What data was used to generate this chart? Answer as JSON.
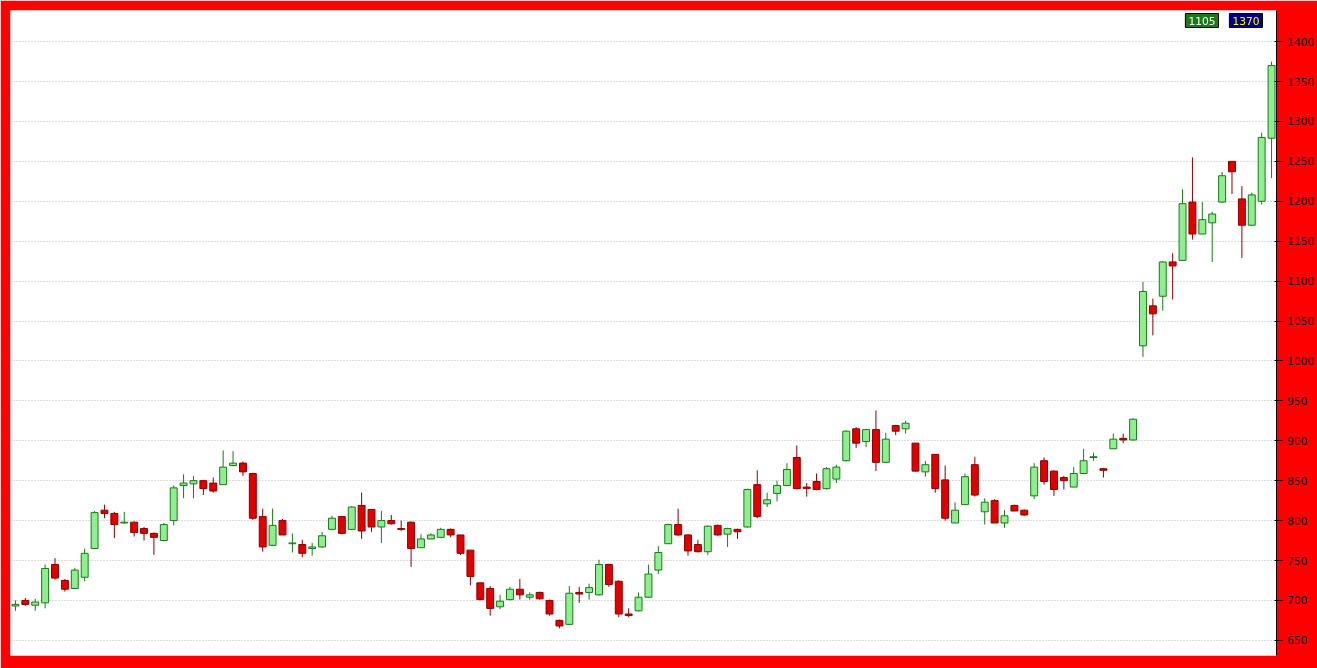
{
  "chart_data": {
    "type": "candlestick",
    "categories": [
      null,
      null,
      null,
      null,
      null,
      null,
      null,
      null,
      null,
      null,
      null,
      null,
      null,
      null,
      null,
      null,
      null,
      null,
      null,
      null,
      null,
      null,
      null,
      null,
      null,
      null,
      null,
      null,
      null,
      null,
      null,
      null,
      null,
      null,
      null,
      null,
      null,
      null,
      null,
      null,
      null,
      null,
      null,
      null,
      null,
      null,
      null,
      null,
      null,
      null,
      null,
      null,
      null,
      null,
      null,
      null,
      null,
      null,
      null,
      null,
      null,
      null,
      null,
      null,
      null,
      null,
      null,
      null,
      null,
      null,
      null,
      null,
      null,
      null,
      null,
      null,
      null,
      null,
      null,
      null,
      null,
      null,
      null,
      null,
      null,
      null,
      null,
      null,
      null,
      null,
      null,
      null,
      null,
      null,
      null,
      null,
      null,
      null,
      null,
      null,
      null,
      null,
      null,
      null,
      null,
      null,
      null,
      null,
      null,
      null,
      null,
      null,
      null,
      null,
      null,
      null,
      null,
      null,
      null,
      null,
      null,
      null,
      null,
      null,
      null,
      null,
      null,
      null
    ],
    "ohlc": [
      [
        693,
        700,
        687,
        695
      ],
      [
        700,
        703,
        693,
        695
      ],
      [
        694,
        702,
        687,
        698
      ],
      [
        697,
        745,
        690,
        740
      ],
      [
        745,
        753,
        726,
        728
      ],
      [
        725,
        727,
        711,
        714
      ],
      [
        715,
        741,
        715,
        738
      ],
      [
        729,
        765,
        724,
        759
      ],
      [
        765,
        812,
        765,
        810
      ],
      [
        813,
        820,
        803,
        809
      ],
      [
        809,
        811,
        778,
        795
      ],
      [
        797,
        811,
        796,
        798
      ],
      [
        798,
        799,
        780,
        785
      ],
      [
        790,
        792,
        775,
        784
      ],
      [
        784,
        785,
        757,
        779
      ],
      [
        775,
        797,
        774,
        795
      ],
      [
        800,
        844,
        794,
        841
      ],
      [
        844,
        858,
        828,
        847
      ],
      [
        846,
        856,
        828,
        850
      ],
      [
        850,
        851,
        832,
        840
      ],
      [
        847,
        854,
        835,
        837
      ],
      [
        845,
        888,
        845,
        867
      ],
      [
        869,
        887,
        868,
        872
      ],
      [
        872,
        874,
        856,
        861
      ],
      [
        859,
        860,
        801,
        803
      ],
      [
        805,
        815,
        761,
        767
      ],
      [
        769,
        815,
        768,
        794
      ],
      [
        800,
        802,
        782,
        782
      ],
      [
        771,
        784,
        760,
        772
      ],
      [
        770,
        776,
        754,
        759
      ],
      [
        765,
        772,
        756,
        767
      ],
      [
        767,
        786,
        766,
        781
      ],
      [
        789,
        806,
        788,
        803
      ],
      [
        805,
        806,
        783,
        784
      ],
      [
        789,
        818,
        788,
        817
      ],
      [
        819,
        835,
        777,
        787
      ],
      [
        814,
        814,
        786,
        792
      ],
      [
        792,
        812,
        772,
        800
      ],
      [
        800,
        807,
        795,
        796
      ],
      [
        790,
        800,
        787,
        789
      ],
      [
        798,
        799,
        742,
        765
      ],
      [
        766,
        783,
        766,
        777
      ],
      [
        777,
        784,
        777,
        782
      ],
      [
        779,
        791,
        778,
        789
      ],
      [
        789,
        790,
        779,
        782
      ],
      [
        782,
        782,
        757,
        759
      ],
      [
        763,
        763,
        719,
        730
      ],
      [
        722,
        722,
        700,
        701
      ],
      [
        715,
        718,
        681,
        690
      ],
      [
        692,
        707,
        689,
        699
      ],
      [
        701,
        717,
        700,
        714
      ],
      [
        714,
        727,
        701,
        707
      ],
      [
        704,
        710,
        701,
        707
      ],
      [
        710,
        711,
        701,
        702
      ],
      [
        700,
        701,
        681,
        683
      ],
      [
        675,
        676,
        665,
        668
      ],
      [
        670,
        718,
        669,
        709
      ],
      [
        710,
        717,
        697,
        708
      ],
      [
        710,
        721,
        701,
        716
      ],
      [
        707,
        751,
        706,
        745
      ],
      [
        745,
        746,
        717,
        720
      ],
      [
        724,
        725,
        679,
        683
      ],
      [
        683,
        690,
        679,
        681
      ],
      [
        687,
        710,
        686,
        704
      ],
      [
        704,
        745,
        703,
        733
      ],
      [
        738,
        768,
        733,
        760
      ],
      [
        771,
        796,
        771,
        795
      ],
      [
        795,
        815,
        781,
        782
      ],
      [
        782,
        783,
        756,
        762
      ],
      [
        770,
        776,
        760,
        761
      ],
      [
        761,
        794,
        757,
        793
      ],
      [
        794,
        795,
        781,
        782
      ],
      [
        783,
        791,
        767,
        790
      ],
      [
        789,
        790,
        777,
        786
      ],
      [
        792,
        840,
        791,
        839
      ],
      [
        845,
        863,
        803,
        805
      ],
      [
        821,
        835,
        817,
        826
      ],
      [
        834,
        850,
        824,
        844
      ],
      [
        844,
        872,
        843,
        864
      ],
      [
        879,
        894,
        839,
        840
      ],
      [
        842,
        847,
        830,
        840
      ],
      [
        849,
        859,
        838,
        839
      ],
      [
        840,
        867,
        839,
        865
      ],
      [
        852,
        870,
        847,
        867
      ],
      [
        875,
        913,
        874,
        912
      ],
      [
        915,
        917,
        891,
        897
      ],
      [
        899,
        915,
        892,
        914
      ],
      [
        914,
        938,
        862,
        873
      ],
      [
        873,
        910,
        872,
        902
      ],
      [
        919,
        920,
        907,
        912
      ],
      [
        915,
        925,
        909,
        922
      ],
      [
        897,
        897,
        861,
        862
      ],
      [
        861,
        875,
        855,
        870
      ],
      [
        883,
        883,
        835,
        840
      ],
      [
        851,
        869,
        800,
        803
      ],
      [
        797,
        823,
        797,
        813
      ],
      [
        820,
        859,
        820,
        855
      ],
      [
        870,
        880,
        830,
        832
      ],
      [
        811,
        828,
        795,
        823
      ],
      [
        825,
        827,
        797,
        797
      ],
      [
        797,
        813,
        791,
        806
      ],
      [
        819,
        820,
        812,
        812
      ],
      [
        813,
        814,
        806,
        807
      ],
      [
        831,
        872,
        827,
        867
      ],
      [
        875,
        879,
        845,
        849
      ],
      [
        862,
        863,
        831,
        839
      ],
      [
        854,
        856,
        839,
        850
      ],
      [
        842,
        867,
        842,
        859
      ],
      [
        859,
        890,
        858,
        875
      ],
      [
        879,
        885,
        875,
        880
      ],
      [
        865,
        866,
        854,
        863
      ],
      [
        890,
        909,
        890,
        902
      ],
      [
        903,
        909,
        897,
        901
      ],
      [
        901,
        928,
        900,
        927
      ],
      [
        1019,
        1099,
        1005,
        1087
      ],
      [
        1069,
        1078,
        1032,
        1059
      ],
      [
        1081,
        1125,
        1063,
        1124
      ],
      [
        1124,
        1135,
        1077,
        1119
      ],
      [
        1126,
        1215,
        1126,
        1197
      ],
      [
        1199,
        1255,
        1152,
        1159
      ],
      [
        1159,
        1199,
        1159,
        1177
      ],
      [
        1173,
        1187,
        1124,
        1184
      ],
      [
        1199,
        1237,
        1198,
        1232
      ],
      [
        1250,
        1250,
        1209,
        1237
      ],
      [
        1203,
        1219,
        1129,
        1170
      ],
      [
        1170,
        1211,
        1169,
        1208
      ],
      [
        1200,
        1286,
        1196,
        1280
      ],
      [
        1279,
        1375,
        1229,
        1370
      ]
    ],
    "ylim": [
      631,
      1439
    ],
    "yticks": [
      650,
      700,
      750,
      800,
      850,
      900,
      950,
      1000,
      1050,
      1100,
      1150,
      1200,
      1250,
      1300,
      1350,
      1400
    ],
    "grid": "y",
    "tick_labels": "y",
    "annotations": [
      "1370",
      "1105"
    ]
  }
}
